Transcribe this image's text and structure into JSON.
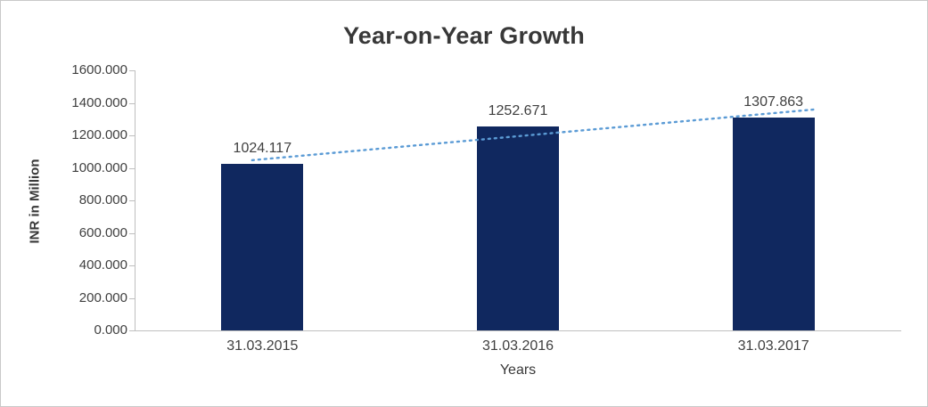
{
  "chart_data": {
    "type": "bar",
    "title": "Year-on-Year Growth",
    "xlabel": "Years",
    "ylabel": "INR in Million",
    "categories": [
      "31.03.2015",
      "31.03.2016",
      "31.03.2017"
    ],
    "values": [
      1024.117,
      1252.671,
      1307.863
    ],
    "value_labels": [
      "1024.117",
      "1252.671",
      "1307.863"
    ],
    "ylim": [
      0,
      1600
    ],
    "ytick_labels": [
      "0.000",
      "200.000",
      "400.000",
      "600.000",
      "800.000",
      "1000.000",
      "1200.000",
      "1400.000",
      "1600.000"
    ],
    "grid": false,
    "legend": "none",
    "colors": {
      "bar": "#10285f",
      "trendline": "#5b9bd5",
      "axis": "#bfbfbf",
      "text": "#3f3f3f"
    },
    "trendline": {
      "style": "dotted",
      "fit": "linear"
    }
  }
}
